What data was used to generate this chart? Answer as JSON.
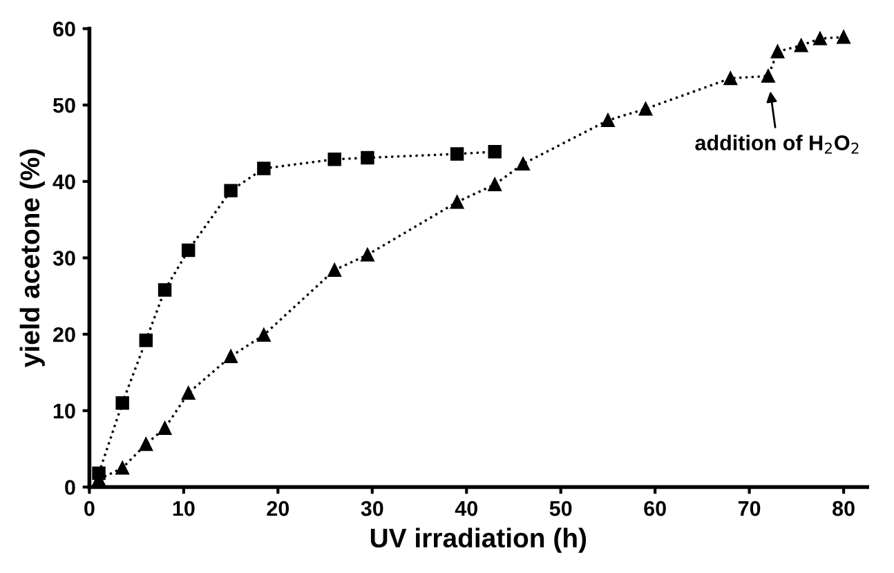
{
  "chart_data": {
    "type": "line",
    "xlabel": "UV irradiation (h)",
    "ylabel": "yield acetone (%)",
    "xlim": [
      0,
      82.5
    ],
    "ylim": [
      0,
      60
    ],
    "xticks": [
      0,
      10,
      20,
      30,
      40,
      50,
      60,
      70,
      80
    ],
    "yticks": [
      0,
      10,
      20,
      30,
      40,
      50,
      60
    ],
    "grid": false,
    "legend": false,
    "line_style": "dotted",
    "series": [
      {
        "color": "#000000",
        "marker": "square",
        "x": [
          1,
          3.5,
          6,
          8,
          10.5,
          15,
          18.5,
          26,
          29.5,
          39,
          43
        ],
        "values": [
          1.8,
          11,
          19.2,
          25.8,
          31,
          38.8,
          41.7,
          42.9,
          43.1,
          43.6,
          43.9
        ]
      },
      {
        "color": "#000000",
        "marker": "triangle",
        "x": [
          1,
          3.5,
          6,
          8,
          10.5,
          15,
          18.5,
          26,
          29.5,
          39,
          43,
          46,
          55,
          59,
          68,
          72,
          73,
          75.5,
          77.5,
          80
        ],
        "values": [
          1,
          2.5,
          5.6,
          7.7,
          12.3,
          17.1,
          19.9,
          28.4,
          30.4,
          37.3,
          39.6,
          42.3,
          48,
          49.5,
          53.5,
          53.8,
          57,
          57.8,
          58.7,
          58.9
        ]
      }
    ],
    "annotations": [
      {
        "text": "addition of H$_{2}$O$_{2}$",
        "x": 72,
        "y": 53.8
      }
    ]
  }
}
